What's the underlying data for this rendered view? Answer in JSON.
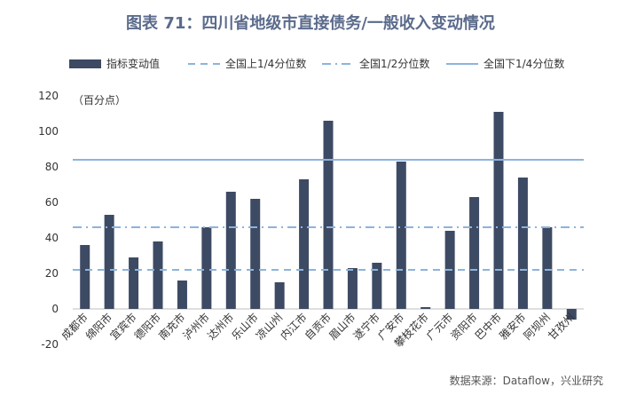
{
  "title": "图表 71：四川省地级市直接债务/一般收入变动情况",
  "source": "数据来源：Dataflow，兴业研究",
  "chart_data": {
    "type": "bar",
    "unit_label": "（百分点）",
    "categories": [
      "成都市",
      "绵阳市",
      "宜宾市",
      "德阳市",
      "南充市",
      "泸州市",
      "达州市",
      "乐山市",
      "凉山州",
      "内江市",
      "自贡市",
      "眉山市",
      "遂宁市",
      "广安市",
      "攀枝花市",
      "广元市",
      "资阳市",
      "巴中市",
      "雅安市",
      "阿坝州",
      "甘孜州"
    ],
    "series": [
      {
        "name": "指标变动值",
        "values": [
          36,
          53,
          29,
          38,
          16,
          46,
          66,
          62,
          15,
          73,
          106,
          23,
          26,
          83,
          1,
          44,
          63,
          111,
          74,
          46,
          -6
        ],
        "color": "#3d4a63"
      }
    ],
    "reference_lines": [
      {
        "name": "全国上1/4分位数",
        "value": 22,
        "style": "dashed",
        "color": "#8db4dc"
      },
      {
        "name": "全国1/2分位数",
        "value": 46,
        "style": "dashdot",
        "color": "#8db4dc"
      },
      {
        "name": "全国下1/4分位数",
        "value": 84,
        "style": "solid",
        "color": "#8db4dc"
      }
    ],
    "ylim": [
      -20,
      120
    ],
    "yticks": [
      -20,
      0,
      20,
      40,
      60,
      80,
      100,
      120
    ],
    "negative_tick_color": "#c00000",
    "grid": false,
    "legend_position": "top"
  }
}
